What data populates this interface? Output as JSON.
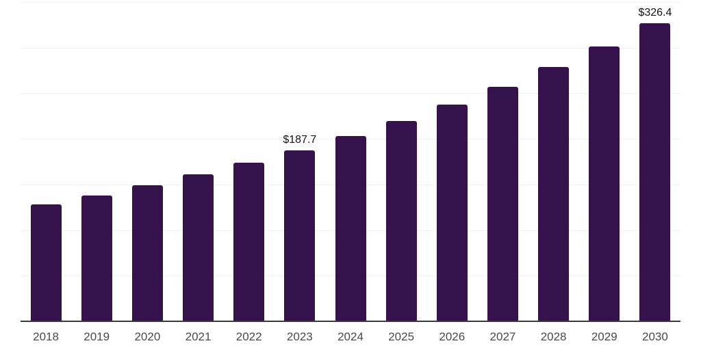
{
  "colors": {
    "background": "#ffffff",
    "bar": "#36124d",
    "gridline": "#f0f0f0",
    "axis_line": "#3a3a3a",
    "tick_label": "#4a4a4a",
    "data_label": "#141414"
  },
  "chart_data": {
    "type": "bar",
    "title": "",
    "xlabel": "",
    "ylabel": "",
    "categories": [
      "2018",
      "2019",
      "2020",
      "2021",
      "2022",
      "2023",
      "2024",
      "2025",
      "2026",
      "2027",
      "2028",
      "2029",
      "2030"
    ],
    "values": [
      128.0,
      138.2,
      149.2,
      161.2,
      174.0,
      187.7,
      203.1,
      219.8,
      237.9,
      257.4,
      278.6,
      301.5,
      326.4
    ],
    "data_labels": [
      "",
      "",
      "",
      "",
      "",
      "$187.7",
      "",
      "",
      "",
      "",
      "",
      "",
      "$326.4"
    ],
    "currency_prefix": "$",
    "ylim": [
      0,
      350
    ],
    "grid_step": 50,
    "grid": true,
    "legend": "none",
    "y_axis_labels_visible": false
  }
}
